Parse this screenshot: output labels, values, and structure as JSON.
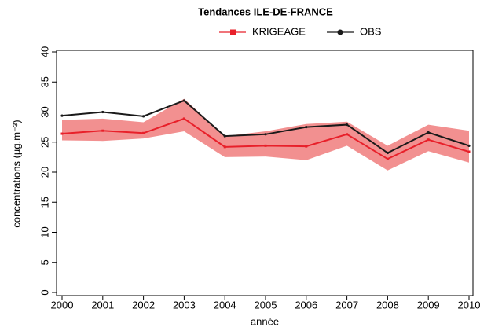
{
  "chart_data": {
    "type": "line",
    "title": "Tendances ILE-DE-FRANCE",
    "x_label": "année",
    "y_label": "concentrations (µg.m⁻³)",
    "x": [
      2000,
      2001,
      2002,
      2003,
      2004,
      2005,
      2006,
      2007,
      2008,
      2009,
      2010
    ],
    "series": [
      {
        "name": "KRIGEAGE",
        "color": "#e8202a",
        "marker": "square",
        "values": [
          26.4,
          26.9,
          26.5,
          28.9,
          24.2,
          24.4,
          24.3,
          26.3,
          22.2,
          25.4,
          23.4
        ]
      },
      {
        "name": "OBS",
        "color": "#1a1a1a",
        "marker": "circle",
        "values": [
          29.4,
          30.0,
          29.3,
          31.9,
          26.0,
          26.3,
          27.5,
          27.9,
          23.2,
          26.6,
          24.4
        ]
      }
    ],
    "band": {
      "color": "#ee6b6b",
      "upper": [
        28.7,
        28.9,
        28.3,
        32.2,
        26.0,
        26.8,
        28.0,
        28.4,
        24.4,
        27.9,
        26.9
      ],
      "lower": [
        25.3,
        25.2,
        25.6,
        26.8,
        22.5,
        22.6,
        22.0,
        24.4,
        20.3,
        23.5,
        21.6
      ]
    },
    "xlim": [
      2000,
      2010
    ],
    "xticks": [
      2000,
      2001,
      2002,
      2003,
      2004,
      2005,
      2006,
      2007,
      2008,
      2009,
      2010
    ],
    "ylim": [
      0,
      40
    ],
    "yticks": [
      0,
      5,
      10,
      15,
      20,
      25,
      30,
      35,
      40
    ],
    "legend": "top"
  }
}
